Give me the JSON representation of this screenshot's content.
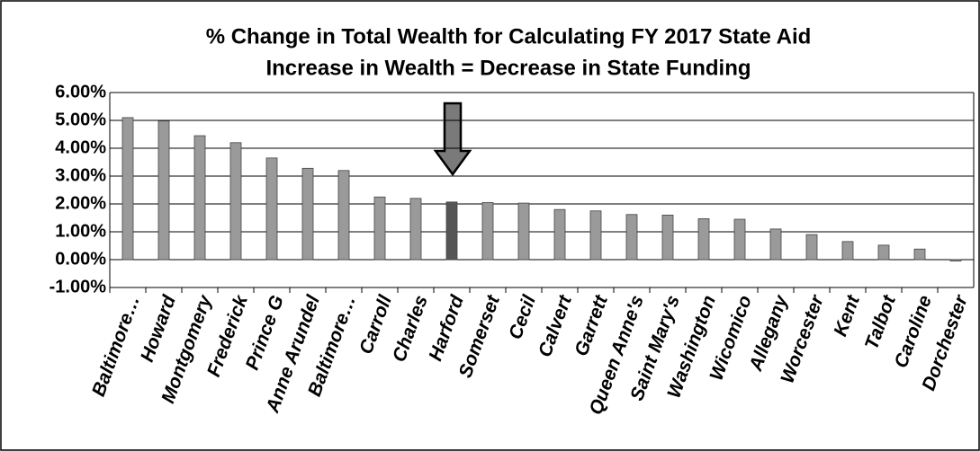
{
  "chart_data": {
    "type": "bar",
    "title": "% Change in Total Wealth for Calculating FY 2017 State Aid",
    "subtitle": "Increase in Wealth = Decrease in State Funding",
    "categories": [
      "Baltimore…",
      "Howard",
      "Montgomery",
      "Frederick",
      "Prince G",
      "Anne Arundel",
      "Baltimore…",
      "Carroll",
      "Charles",
      "Harford",
      "Somerset",
      "Cecil",
      "Calvert",
      "Garrett",
      "Queen Anne's",
      "Saint Mary's",
      "Washington",
      "Wicomico",
      "Allegany",
      "Worcester",
      "Kent",
      "Talbot",
      "Caroline",
      "Dorchester"
    ],
    "values": [
      5.1,
      4.98,
      4.45,
      4.2,
      3.65,
      3.28,
      3.2,
      2.25,
      2.2,
      2.07,
      2.05,
      2.03,
      1.8,
      1.75,
      1.62,
      1.6,
      1.47,
      1.45,
      1.1,
      0.9,
      0.65,
      0.52,
      0.38,
      -0.05
    ],
    "colors": [
      "#9a9a9a",
      "#9a9a9a",
      "#9a9a9a",
      "#9a9a9a",
      "#9a9a9a",
      "#9a9a9a",
      "#9a9a9a",
      "#9a9a9a",
      "#9a9a9a",
      "#555555",
      "#9a9a9a",
      "#9a9a9a",
      "#9a9a9a",
      "#9a9a9a",
      "#9a9a9a",
      "#9a9a9a",
      "#9a9a9a",
      "#9a9a9a",
      "#9a9a9a",
      "#9a9a9a",
      "#9a9a9a",
      "#9a9a9a",
      "#9a9a9a",
      "#9a9a9a"
    ],
    "ylim": [
      -1,
      6
    ],
    "yticks": [
      {
        "value": -1,
        "label": "-1.00%"
      },
      {
        "value": 0,
        "label": "0.00%"
      },
      {
        "value": 1,
        "label": "1.00%"
      },
      {
        "value": 2,
        "label": "2.00%"
      },
      {
        "value": 3,
        "label": "3.00%"
      },
      {
        "value": 4,
        "label": "4.00%"
      },
      {
        "value": 5,
        "label": "5.00%"
      },
      {
        "value": 6,
        "label": "6.00%"
      }
    ],
    "grid": true
  }
}
